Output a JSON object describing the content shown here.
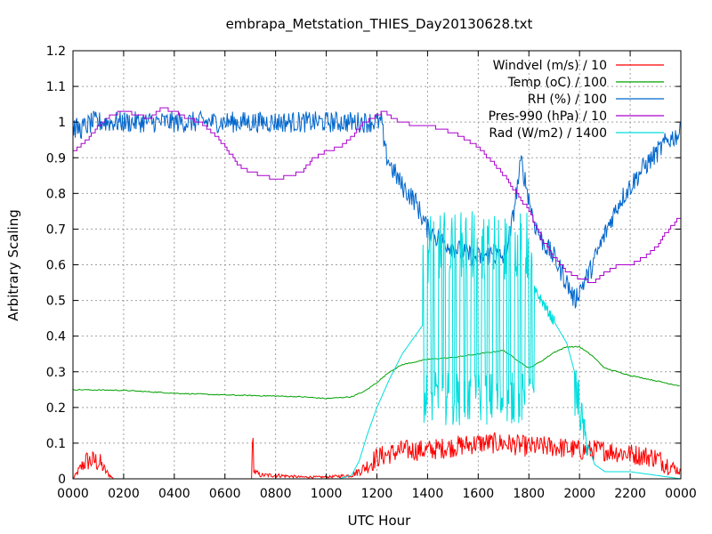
{
  "chart_data": {
    "type": "line",
    "title": "embrapa_Metstation_THIES_Day20130628.txt",
    "xlabel": "UTC Hour",
    "ylabel": "Arbitrary Scaling",
    "xlim": [
      0,
      24
    ],
    "ylim": [
      0,
      1.2
    ],
    "grid": true,
    "legend_position": "top-right",
    "x_ticks": [
      {
        "value": 0,
        "label": "0000"
      },
      {
        "value": 2,
        "label": "0200"
      },
      {
        "value": 4,
        "label": "0400"
      },
      {
        "value": 6,
        "label": "0600"
      },
      {
        "value": 8,
        "label": "0800"
      },
      {
        "value": 10,
        "label": "1000"
      },
      {
        "value": 12,
        "label": "1200"
      },
      {
        "value": 14,
        "label": "1400"
      },
      {
        "value": 16,
        "label": "1600"
      },
      {
        "value": 18,
        "label": "1800"
      },
      {
        "value": 20,
        "label": "2000"
      },
      {
        "value": 22,
        "label": "2200"
      },
      {
        "value": 24,
        "label": "0000"
      }
    ],
    "y_ticks": [
      {
        "value": 0,
        "label": "0"
      },
      {
        "value": 0.1,
        "label": "0.1"
      },
      {
        "value": 0.2,
        "label": "0.2"
      },
      {
        "value": 0.3,
        "label": "0.3"
      },
      {
        "value": 0.4,
        "label": "0.4"
      },
      {
        "value": 0.5,
        "label": "0.5"
      },
      {
        "value": 0.6,
        "label": "0.6"
      },
      {
        "value": 0.7,
        "label": "0.7"
      },
      {
        "value": 0.8,
        "label": "0.8"
      },
      {
        "value": 0.9,
        "label": "0.9"
      },
      {
        "value": 1.0,
        "label": "1"
      },
      {
        "value": 1.1,
        "label": "1.1"
      },
      {
        "value": 1.2,
        "label": "1.2"
      }
    ],
    "series": [
      {
        "name": "Windvel (m/s) / 10",
        "color": "#ff0000",
        "style": "noisy",
        "points": [
          [
            0,
            0
          ],
          [
            0.3,
            0.03
          ],
          [
            0.5,
            0.05
          ],
          [
            0.9,
            0.05
          ],
          [
            1.1,
            0.04
          ],
          [
            1.3,
            0.02
          ],
          [
            1.6,
            0
          ],
          [
            7.05,
            0
          ],
          [
            7.1,
            0.12
          ],
          [
            7.15,
            0.02
          ],
          [
            7.4,
            0.01
          ],
          [
            8,
            0.01
          ],
          [
            9,
            0.005
          ],
          [
            10,
            0.005
          ],
          [
            11,
            0.01
          ],
          [
            11.5,
            0.03
          ],
          [
            12,
            0.06
          ],
          [
            13,
            0.08
          ],
          [
            14,
            0.08
          ],
          [
            15,
            0.09
          ],
          [
            16,
            0.1
          ],
          [
            17,
            0.1
          ],
          [
            18,
            0.09
          ],
          [
            19,
            0.09
          ],
          [
            20,
            0.08
          ],
          [
            21,
            0.08
          ],
          [
            22,
            0.07
          ],
          [
            23,
            0.06
          ],
          [
            23.5,
            0.04
          ],
          [
            24,
            0.02
          ]
        ]
      },
      {
        "name": "Temp (oC) / 100",
        "color": "#00a000",
        "points": [
          [
            0,
            0.25
          ],
          [
            2,
            0.248
          ],
          [
            4,
            0.24
          ],
          [
            6,
            0.235
          ],
          [
            8,
            0.232
          ],
          [
            9,
            0.23
          ],
          [
            10,
            0.225
          ],
          [
            11,
            0.23
          ],
          [
            11.5,
            0.245
          ],
          [
            12,
            0.27
          ],
          [
            12.5,
            0.3
          ],
          [
            13,
            0.32
          ],
          [
            14,
            0.335
          ],
          [
            15,
            0.34
          ],
          [
            16,
            0.35
          ],
          [
            17,
            0.36
          ],
          [
            17.5,
            0.335
          ],
          [
            18,
            0.31
          ],
          [
            18.5,
            0.33
          ],
          [
            19,
            0.355
          ],
          [
            19.5,
            0.37
          ],
          [
            20,
            0.37
          ],
          [
            20.5,
            0.345
          ],
          [
            21,
            0.31
          ],
          [
            22,
            0.29
          ],
          [
            23,
            0.275
          ],
          [
            24,
            0.26
          ]
        ]
      },
      {
        "name": "RH (%) / 100",
        "color": "#0066cc",
        "style": "noisy",
        "points": [
          [
            0,
            0.985
          ],
          [
            0.3,
            0.98
          ],
          [
            0.8,
            1.0
          ],
          [
            12.2,
            1.0
          ],
          [
            12.3,
            0.92
          ],
          [
            12.6,
            0.87
          ],
          [
            13,
            0.82
          ],
          [
            13.5,
            0.78
          ],
          [
            14,
            0.7
          ],
          [
            14.5,
            0.67
          ],
          [
            15,
            0.65
          ],
          [
            15.5,
            0.63
          ],
          [
            16,
            0.62
          ],
          [
            16.5,
            0.63
          ],
          [
            17,
            0.62
          ],
          [
            17.3,
            0.7
          ],
          [
            17.5,
            0.8
          ],
          [
            17.7,
            0.89
          ],
          [
            17.9,
            0.82
          ],
          [
            18.2,
            0.72
          ],
          [
            18.5,
            0.67
          ],
          [
            19,
            0.62
          ],
          [
            19.5,
            0.55
          ],
          [
            19.8,
            0.5
          ],
          [
            20,
            0.53
          ],
          [
            20.4,
            0.58
          ],
          [
            20.8,
            0.65
          ],
          [
            21.2,
            0.72
          ],
          [
            21.6,
            0.78
          ],
          [
            22,
            0.82
          ],
          [
            22.5,
            0.87
          ],
          [
            23,
            0.91
          ],
          [
            23.5,
            0.95
          ],
          [
            24,
            0.97
          ]
        ]
      },
      {
        "name": "Pres-990 (hPa) / 10",
        "color": "#aa00cc",
        "style": "stepped",
        "points": [
          [
            0,
            0.92
          ],
          [
            0.5,
            0.95
          ],
          [
            1,
            0.99
          ],
          [
            1.5,
            1.02
          ],
          [
            2,
            1.03
          ],
          [
            2.5,
            1.02
          ],
          [
            3,
            1.01
          ],
          [
            3.5,
            1.04
          ],
          [
            4,
            1.03
          ],
          [
            4.5,
            1.01
          ],
          [
            5,
            1.0
          ],
          [
            5.5,
            0.97
          ],
          [
            6,
            0.93
          ],
          [
            6.5,
            0.88
          ],
          [
            7,
            0.86
          ],
          [
            7.5,
            0.85
          ],
          [
            8,
            0.84
          ],
          [
            8.5,
            0.85
          ],
          [
            9,
            0.86
          ],
          [
            9.5,
            0.9
          ],
          [
            10,
            0.92
          ],
          [
            10.5,
            0.93
          ],
          [
            11,
            0.96
          ],
          [
            11.5,
            1.0
          ],
          [
            12,
            1.02
          ],
          [
            12.3,
            1.03
          ],
          [
            12.6,
            1.01
          ],
          [
            13,
            1.0
          ],
          [
            13.5,
            0.99
          ],
          [
            14,
            0.99
          ],
          [
            14.5,
            0.98
          ],
          [
            15,
            0.97
          ],
          [
            15.5,
            0.95
          ],
          [
            16,
            0.93
          ],
          [
            16.5,
            0.89
          ],
          [
            17,
            0.85
          ],
          [
            17.5,
            0.8
          ],
          [
            18,
            0.75
          ],
          [
            18.5,
            0.67
          ],
          [
            19,
            0.62
          ],
          [
            19.5,
            0.58
          ],
          [
            20,
            0.56
          ],
          [
            20.5,
            0.55
          ],
          [
            21,
            0.58
          ],
          [
            21.5,
            0.6
          ],
          [
            22,
            0.6
          ],
          [
            22.5,
            0.62
          ],
          [
            23,
            0.65
          ],
          [
            23.5,
            0.7
          ],
          [
            24,
            0.74
          ]
        ]
      },
      {
        "name": "Rad (W/m2) / 1400",
        "color": "#00dddd",
        "style": "oscillating",
        "points": [
          [
            0,
            0
          ],
          [
            10.5,
            0
          ],
          [
            11,
            0.01
          ],
          [
            11.3,
            0.05
          ],
          [
            11.6,
            0.12
          ],
          [
            12,
            0.2
          ],
          [
            12.5,
            0.28
          ],
          [
            13,
            0.35
          ],
          [
            13.5,
            0.4
          ],
          [
            14,
            0.45
          ],
          [
            14.5,
            0.5
          ],
          [
            15,
            0.55
          ],
          [
            15.5,
            0.6
          ],
          [
            16,
            0.62
          ],
          [
            16.5,
            0.6
          ],
          [
            17,
            0.58
          ],
          [
            17.5,
            0.56
          ],
          [
            18,
            0.55
          ],
          [
            18.5,
            0.5
          ],
          [
            19,
            0.44
          ],
          [
            19.5,
            0.38
          ],
          [
            19.8,
            0.3
          ],
          [
            20,
            0.22
          ],
          [
            20.3,
            0.1
          ],
          [
            20.6,
            0.04
          ],
          [
            21,
            0.02
          ],
          [
            22,
            0.02
          ],
          [
            24,
            0
          ]
        ]
      }
    ]
  }
}
